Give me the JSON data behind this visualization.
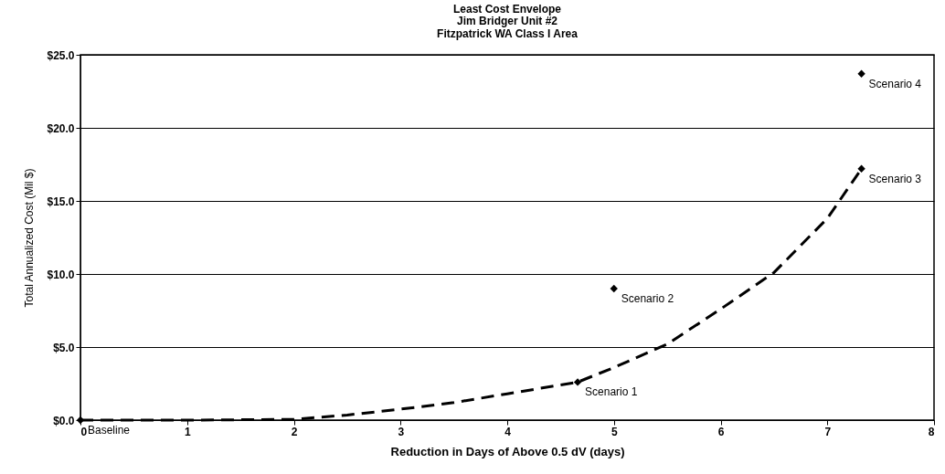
{
  "chart_data": {
    "type": "scatter",
    "title": "Least Cost Envelope",
    "subtitle": "Jim Bridger Unit #2\nFitzpatrick WA Class I Area",
    "xlabel": "Reduction in Days of Above 0.5 dV (days)",
    "ylabel": "Total Annualized Cost (Mil $)",
    "xlim": [
      0,
      8
    ],
    "xticks": [
      0,
      1,
      2,
      3,
      4,
      5,
      6,
      7,
      8
    ],
    "ylim": [
      0,
      25
    ],
    "yticks": [
      {
        "value": 0,
        "label": "$0.0"
      },
      {
        "value": 5,
        "label": "$5.0"
      },
      {
        "value": 10,
        "label": "$10.0"
      },
      {
        "value": 15,
        "label": "$15.0"
      },
      {
        "value": 20,
        "label": "$20.0"
      },
      {
        "value": 25,
        "label": "$25.0"
      }
    ],
    "grid": "y",
    "series": [
      {
        "color": "#000000",
        "marker": "diamond",
        "x": [
          0,
          4.66,
          5.0,
          7.32,
          7.32
        ],
        "values": [
          0,
          2.6,
          9.0,
          17.2,
          23.7
        ]
      },
      {
        "type": "line",
        "color": "#000000",
        "line_style": "dashed",
        "marker": "none",
        "x": [
          0,
          1,
          2,
          2.5,
          3,
          3.5,
          4,
          4.66,
          5,
          5.5,
          6,
          6.5,
          7,
          7.32
        ],
        "values": [
          0,
          0,
          0.05,
          0.35,
          0.75,
          1.2,
          1.8,
          2.6,
          3.6,
          5.2,
          7.6,
          10.1,
          13.8,
          17.2
        ]
      }
    ],
    "annotations": [
      {
        "text": "Baseline",
        "x": 0,
        "y": 0
      },
      {
        "text": "Scenario 1",
        "x": 4.66,
        "y": 2.6
      },
      {
        "text": "Scenario 2",
        "x": 5.0,
        "y": 9.0
      },
      {
        "text": "Scenario 3",
        "x": 7.32,
        "y": 17.2
      },
      {
        "text": "Scenario 4",
        "x": 7.32,
        "y": 23.7
      }
    ]
  }
}
